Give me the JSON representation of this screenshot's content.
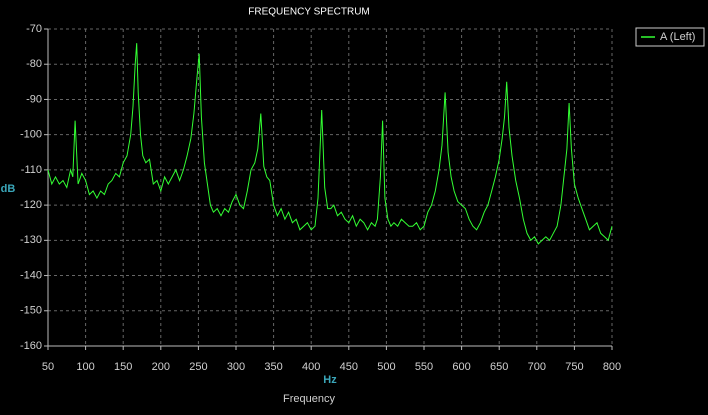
{
  "chart_data": {
    "type": "line",
    "title": "FREQUENCY SPECTRUM",
    "y_label": "dB",
    "x_unit": "Hz",
    "x_label": "Frequency",
    "xlim": [
      50,
      800
    ],
    "xticks": [
      50,
      100,
      150,
      200,
      250,
      300,
      350,
      400,
      450,
      500,
      550,
      600,
      650,
      700,
      750,
      800
    ],
    "ylim": [
      -160,
      -70
    ],
    "yticks": [
      -70,
      -80,
      -90,
      -100,
      -110,
      -120,
      -130,
      -140,
      -150,
      -160
    ],
    "grid": true,
    "legend": "right",
    "x": [
      50,
      55,
      60,
      65,
      70,
      75,
      80,
      83,
      86,
      90,
      95,
      100,
      105,
      110,
      115,
      120,
      125,
      130,
      135,
      140,
      145,
      150,
      155,
      160,
      163,
      166,
      168,
      170,
      173,
      176,
      180,
      185,
      190,
      195,
      200,
      205,
      210,
      215,
      220,
      225,
      230,
      235,
      240,
      244,
      248,
      251,
      254,
      258,
      262,
      266,
      270,
      275,
      280,
      285,
      290,
      295,
      300,
      305,
      310,
      315,
      320,
      325,
      329,
      333,
      337,
      341,
      345,
      350,
      355,
      360,
      365,
      370,
      375,
      380,
      385,
      390,
      395,
      400,
      405,
      409,
      414,
      418,
      422,
      426,
      430,
      435,
      440,
      445,
      450,
      455,
      460,
      465,
      470,
      475,
      480,
      485,
      488,
      492,
      495,
      498,
      502,
      506,
      510,
      515,
      520,
      525,
      530,
      535,
      540,
      545,
      550,
      555,
      560,
      565,
      570,
      574,
      578,
      582,
      586,
      590,
      595,
      600,
      605,
      610,
      615,
      620,
      625,
      630,
      635,
      640,
      645,
      650,
      654,
      657,
      660,
      663,
      667,
      672,
      677,
      682,
      687,
      692,
      697,
      702,
      707,
      712,
      717,
      722,
      727,
      732,
      736,
      740,
      743,
      746,
      750,
      755,
      760,
      765,
      770,
      775,
      780,
      785,
      790,
      795,
      800
    ],
    "series": [
      {
        "name": "A (Left)",
        "color": "#33ff33",
        "values": [
          -110,
          -114,
          -112,
          -114,
          -113,
          -115,
          -110,
          -112,
          -96,
          -114,
          -111,
          -113,
          -117,
          -116,
          -118,
          -116,
          -117,
          -114,
          -113,
          -111,
          -112,
          -108,
          -106,
          -100,
          -92,
          -80,
          -74,
          -88,
          -100,
          -106,
          -108,
          -107,
          -114,
          -113,
          -116,
          -112,
          -114,
          -112,
          -110,
          -113,
          -110,
          -106,
          -101,
          -94,
          -84,
          -77,
          -95,
          -108,
          -114,
          -120,
          -122,
          -121,
          -123,
          -121,
          -122,
          -119,
          -117,
          -120,
          -121,
          -116,
          -110,
          -108,
          -104,
          -94,
          -109,
          -112,
          -113,
          -120,
          -123,
          -121,
          -124,
          -122,
          -125,
          -124,
          -127,
          -126,
          -125,
          -127,
          -126,
          -118,
          -93,
          -115,
          -121,
          -121,
          -120,
          -123,
          -122,
          -124,
          -125,
          -123,
          -126,
          -124,
          -125,
          -127,
          -125,
          -126,
          -124,
          -112,
          -96,
          -118,
          -124,
          -126,
          -125,
          -126,
          -124,
          -125,
          -126,
          -126,
          -125,
          -127,
          -126,
          -122,
          -120,
          -116,
          -110,
          -103,
          -88,
          -105,
          -112,
          -116,
          -119,
          -120,
          -121,
          -124,
          -126,
          -127,
          -125,
          -122,
          -120,
          -116,
          -112,
          -107,
          -101,
          -95,
          -85,
          -98,
          -106,
          -113,
          -118,
          -124,
          -128,
          -130,
          -129,
          -131,
          -130,
          -129,
          -130,
          -128,
          -126,
          -120,
          -112,
          -104,
          -91,
          -104,
          -114,
          -118,
          -121,
          -124,
          -127,
          -126,
          -125,
          -128,
          -129,
          -130,
          -126
        ]
      }
    ]
  }
}
